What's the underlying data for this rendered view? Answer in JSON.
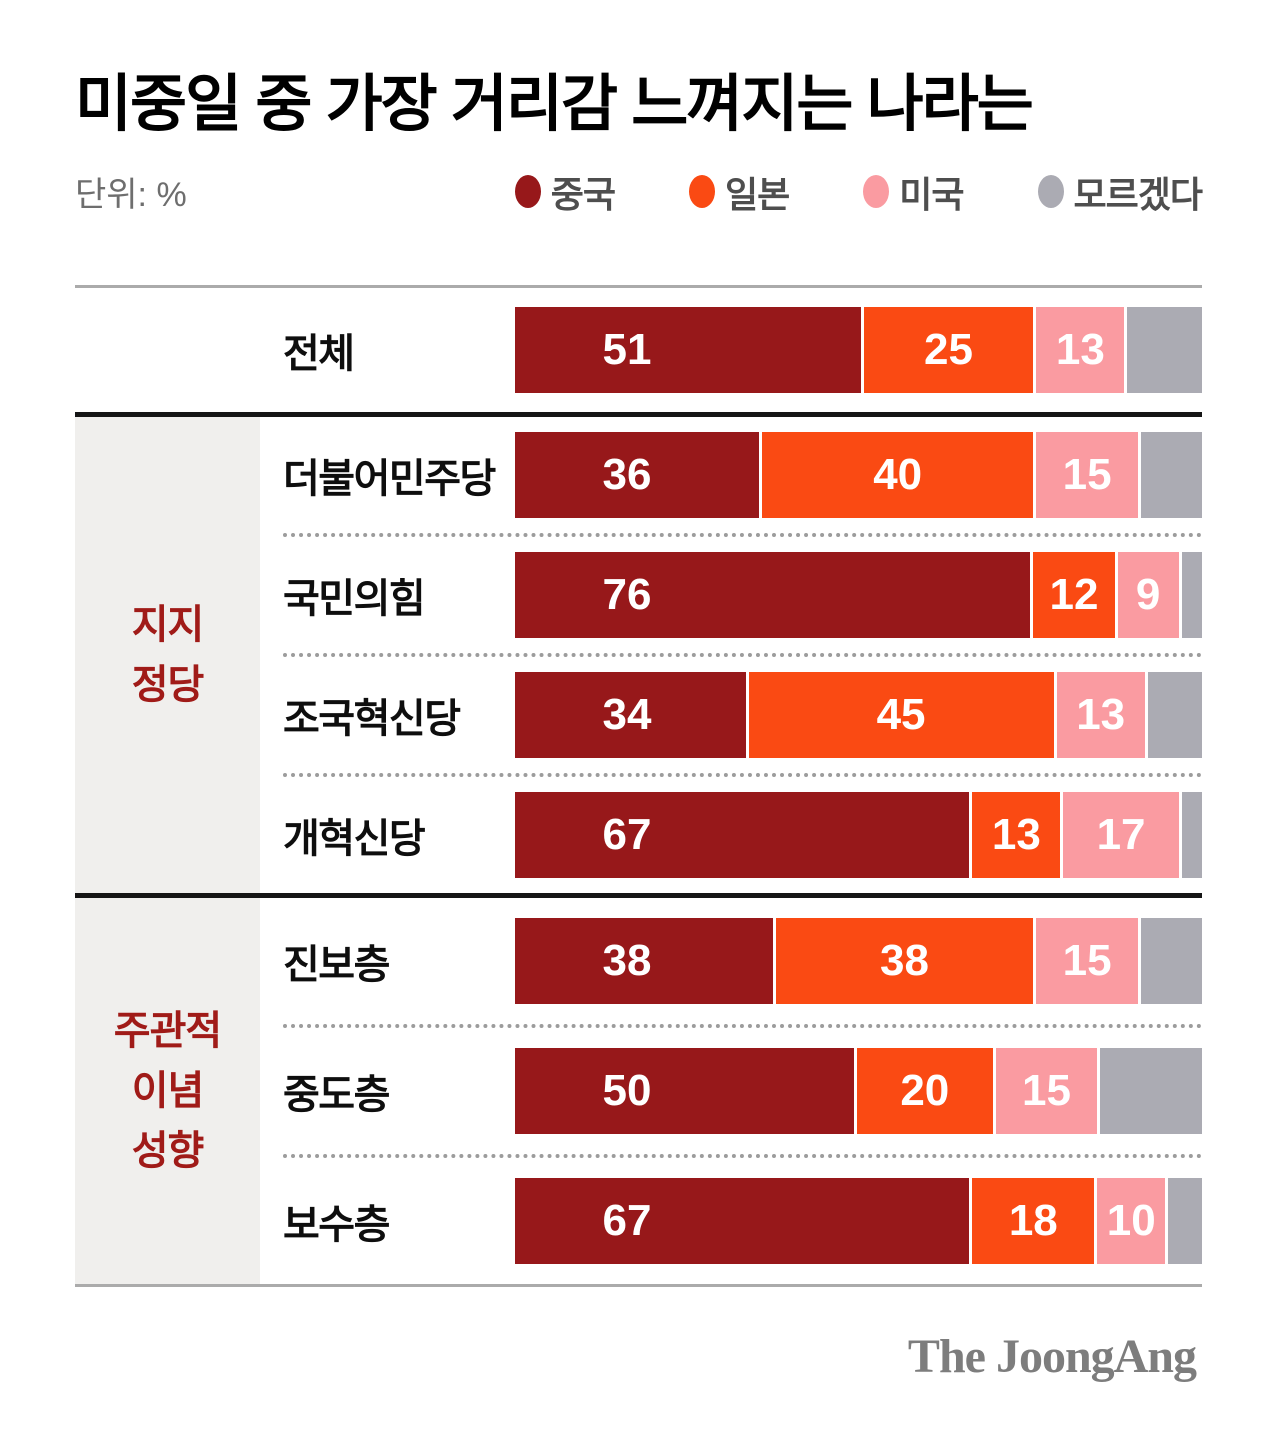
{
  "title": "미중일 중 가장 거리감 느껴지는 나라는",
  "unit_label": "단위: %",
  "legend": [
    {
      "name": "중국",
      "color": "#97181A"
    },
    {
      "name": "일본",
      "color": "#FA4A13"
    },
    {
      "name": "미국",
      "color": "#FA9BA1"
    },
    {
      "name": "모르겠다",
      "color": "#ABABB3"
    }
  ],
  "colors": {
    "china": "#97181A",
    "japan": "#FA4A13",
    "usa": "#FA9BA1",
    "unknown": "#ABABB3",
    "group_bg": "#F0EFED",
    "group_label": "#A01B18",
    "line_black": "#151515",
    "line_gray": "#ABABAB"
  },
  "footer": {
    "logo_text": "The JoongAng"
  },
  "chart_data": {
    "type": "bar",
    "orientation": "horizontal",
    "stacked": true,
    "unit": "%",
    "xlim": [
      0,
      100
    ],
    "series_names": [
      "중국",
      "일본",
      "미국",
      "모르겠다"
    ],
    "series_keys": [
      "china",
      "japan",
      "usa",
      "unknown"
    ],
    "last_series_unlabeled": true,
    "groups": [
      {
        "label": "",
        "label_lines": [],
        "rows": [
          {
            "label": "전체",
            "values": [
              51,
              25,
              13,
              11
            ]
          }
        ]
      },
      {
        "label": "지지 정당",
        "label_lines": [
          "지지",
          "정당"
        ],
        "rows": [
          {
            "label": "더불어민주당",
            "values": [
              36,
              40,
              15,
              9
            ]
          },
          {
            "label": "국민의힘",
            "values": [
              76,
              12,
              9,
              3
            ]
          },
          {
            "label": "조국혁신당",
            "values": [
              34,
              45,
              13,
              8
            ]
          },
          {
            "label": "개혁신당",
            "values": [
              67,
              13,
              17,
              3
            ]
          }
        ]
      },
      {
        "label": "주관적 이념 성향",
        "label_lines": [
          "주관적",
          "이념",
          "성향"
        ],
        "rows": [
          {
            "label": "진보층",
            "values": [
              38,
              38,
              15,
              9
            ]
          },
          {
            "label": "중도층",
            "values": [
              50,
              20,
              15,
              15
            ]
          },
          {
            "label": "보수층",
            "values": [
              67,
              18,
              10,
              5
            ]
          }
        ]
      }
    ]
  }
}
